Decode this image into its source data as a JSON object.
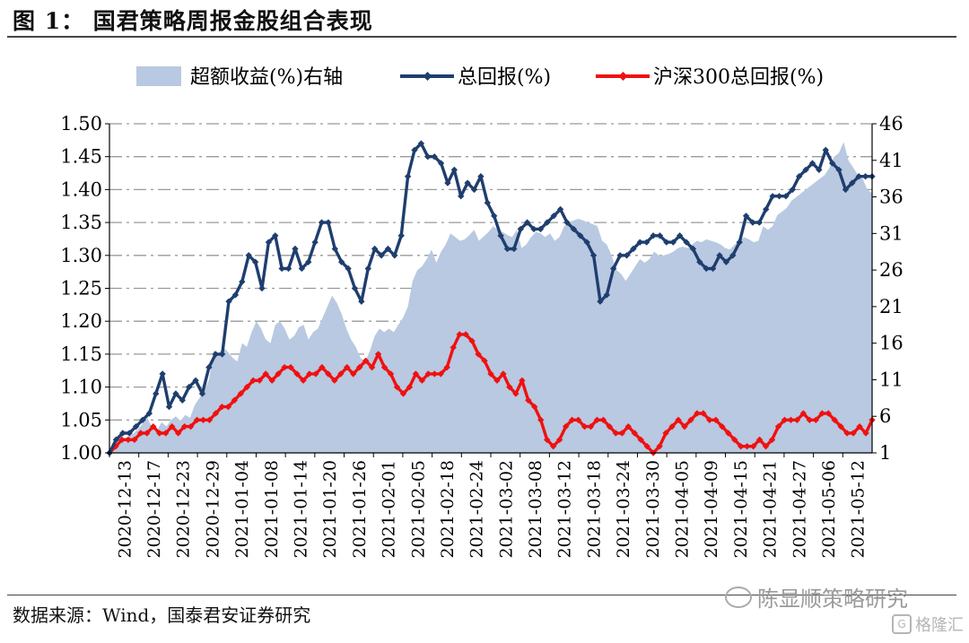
{
  "header": {
    "title": "图 1：  国君策略周报金股组合表现"
  },
  "footer": {
    "source": "数据来源：Wind，国泰君安证券研究"
  },
  "watermark": {
    "text": "陈显顺策略研究",
    "icon": "wechat-icon"
  },
  "badge": {
    "text": "格隆汇",
    "icon": "gelonghui-logo-icon"
  },
  "colors": {
    "excess": "#b8c9e1",
    "total": "#1f3e6e",
    "hs300": "#f01010",
    "grid": "#9a9a9a"
  },
  "chart_data": {
    "type": "line",
    "legend": [
      "超额收益(%)右轴",
      "总回报(%)",
      "沪深300总回报(%)"
    ],
    "legend_position": "top",
    "grid": true,
    "y_left_ticks": [
      "1.50",
      "1.45",
      "1.40",
      "1.35",
      "1.30",
      "1.25",
      "1.20",
      "1.15",
      "1.10",
      "1.05",
      "1.00"
    ],
    "y_left_range": [
      1.0,
      1.5
    ],
    "y_right_ticks": [
      "46",
      "41",
      "36",
      "31",
      "26",
      "21",
      "16",
      "11",
      "6",
      "1"
    ],
    "y_right_range": [
      1,
      46
    ],
    "x_tick_labels": [
      "2020-12-13",
      "2020-12-17",
      "2020-12-23",
      "2020-12-29",
      "2021-01-04",
      "2021-01-08",
      "2021-01-14",
      "2021-01-20",
      "2021-01-26",
      "2021-02-01",
      "2021-02-05",
      "2021-02-18",
      "2021-02-24",
      "2021-03-02",
      "2021-03-08",
      "2021-03-12",
      "2021-03-18",
      "2021-03-24",
      "2021-03-30",
      "2021-04-05",
      "2021-04-09",
      "2021-04-15",
      "2021-04-21",
      "2021-04-27",
      "2021-05-06",
      "2021-05-12"
    ],
    "series": [
      {
        "name": "超额收益(%)右轴",
        "type": "area",
        "axis": "right",
        "values": [
          1.0,
          1.8,
          2.5,
          3.0,
          3.2,
          3.6,
          4.2,
          5.0,
          5.8,
          4.5,
          4.0,
          5.2,
          4.6,
          5.5,
          6.0,
          5.4,
          6.2,
          5.8,
          7.5,
          8.5,
          9.5,
          11.0,
          15.0,
          14.5,
          15.5,
          14.8,
          14.0,
          13.5,
          16.0,
          15.5,
          17.5,
          19.0,
          18.0,
          16.5,
          16.0,
          18.5,
          19.0,
          18.0,
          16.5,
          17.0,
          18.2,
          18.5,
          16.5,
          17.5,
          18.0,
          19.5,
          21.0,
          22.5,
          21.5,
          20.0,
          18.0,
          16.5,
          15.5,
          14.0,
          13.5,
          15.0,
          17.0,
          18.0,
          17.5,
          18.0,
          17.5,
          18.5,
          19.5,
          21.0,
          24.5,
          26.0,
          26.5,
          27.5,
          28.8,
          27.0,
          28.5,
          29.5,
          31.0,
          30.5,
          30.0,
          30.2,
          30.8,
          31.5,
          30.0,
          30.6,
          31.2,
          32.0,
          31.5,
          31.2,
          30.8,
          30.5,
          31.5,
          29.0,
          29.5,
          30.5,
          31.2,
          31.0,
          30.5,
          31.0,
          30.0,
          30.5,
          32.0,
          32.5,
          32.8,
          33.0,
          32.8,
          32.5,
          32.3,
          32.0,
          30.0,
          29.5,
          28.0,
          26.0,
          25.5,
          24.5,
          25.5,
          26.5,
          27.5,
          27.0,
          27.5,
          28.5,
          28.0,
          28.0,
          28.2,
          28.5,
          29.0,
          29.2,
          29.0,
          29.5,
          30.0,
          29.8,
          30.2,
          30.0,
          29.8,
          29.5,
          29.0,
          28.8,
          29.5,
          30.0,
          30.5,
          30.2,
          29.8,
          30.0,
          32.0,
          31.5,
          32.0,
          33.5,
          34.0,
          34.5,
          35.5,
          36.0,
          36.5,
          37.0,
          37.5,
          38.0,
          38.5,
          39.0,
          40.0,
          41.5,
          42.0,
          43.5,
          41.0,
          40.0,
          39.0,
          38.5,
          37.0,
          36.5
        ]
      },
      {
        "name": "总回报(%)",
        "type": "line",
        "axis": "left",
        "values": [
          1.0,
          1.02,
          1.03,
          1.03,
          1.04,
          1.05,
          1.06,
          1.09,
          1.12,
          1.07,
          1.09,
          1.08,
          1.1,
          1.11,
          1.09,
          1.13,
          1.15,
          1.15,
          1.23,
          1.24,
          1.26,
          1.3,
          1.29,
          1.25,
          1.32,
          1.33,
          1.28,
          1.28,
          1.31,
          1.28,
          1.29,
          1.32,
          1.35,
          1.35,
          1.31,
          1.29,
          1.28,
          1.25,
          1.23,
          1.28,
          1.31,
          1.3,
          1.31,
          1.3,
          1.33,
          1.42,
          1.46,
          1.47,
          1.45,
          1.45,
          1.44,
          1.41,
          1.43,
          1.39,
          1.41,
          1.4,
          1.42,
          1.38,
          1.36,
          1.33,
          1.31,
          1.31,
          1.34,
          1.35,
          1.34,
          1.34,
          1.35,
          1.36,
          1.37,
          1.35,
          1.34,
          1.33,
          1.32,
          1.3,
          1.23,
          1.24,
          1.28,
          1.3,
          1.3,
          1.31,
          1.32,
          1.32,
          1.33,
          1.33,
          1.32,
          1.32,
          1.33,
          1.32,
          1.31,
          1.29,
          1.28,
          1.28,
          1.3,
          1.29,
          1.3,
          1.32,
          1.36,
          1.35,
          1.35,
          1.37,
          1.39,
          1.39,
          1.39,
          1.4,
          1.42,
          1.43,
          1.44,
          1.43,
          1.46,
          1.44,
          1.43,
          1.4,
          1.41,
          1.42,
          1.42,
          1.42
        ]
      },
      {
        "name": "沪深300总回报(%)",
        "type": "line",
        "axis": "left",
        "values": [
          1.0,
          1.01,
          1.02,
          1.02,
          1.02,
          1.03,
          1.03,
          1.04,
          1.03,
          1.03,
          1.04,
          1.03,
          1.04,
          1.04,
          1.05,
          1.05,
          1.05,
          1.06,
          1.07,
          1.07,
          1.08,
          1.09,
          1.1,
          1.11,
          1.11,
          1.12,
          1.11,
          1.12,
          1.13,
          1.13,
          1.12,
          1.11,
          1.12,
          1.12,
          1.13,
          1.12,
          1.11,
          1.12,
          1.13,
          1.12,
          1.13,
          1.14,
          1.13,
          1.15,
          1.13,
          1.12,
          1.1,
          1.09,
          1.1,
          1.12,
          1.11,
          1.12,
          1.12,
          1.12,
          1.13,
          1.16,
          1.18,
          1.18,
          1.17,
          1.15,
          1.14,
          1.12,
          1.11,
          1.12,
          1.1,
          1.09,
          1.11,
          1.08,
          1.07,
          1.05,
          1.02,
          1.01,
          1.02,
          1.04,
          1.05,
          1.05,
          1.04,
          1.04,
          1.05,
          1.05,
          1.04,
          1.03,
          1.03,
          1.04,
          1.03,
          1.02,
          1.01,
          1.0,
          1.01,
          1.03,
          1.04,
          1.05,
          1.04,
          1.05,
          1.06,
          1.06,
          1.05,
          1.05,
          1.04,
          1.03,
          1.02,
          1.01,
          1.01,
          1.01,
          1.02,
          1.01,
          1.02,
          1.04,
          1.05,
          1.05,
          1.05,
          1.06,
          1.05,
          1.05,
          1.06,
          1.06,
          1.05,
          1.04,
          1.03,
          1.03,
          1.04,
          1.03,
          1.05
        ]
      }
    ]
  }
}
